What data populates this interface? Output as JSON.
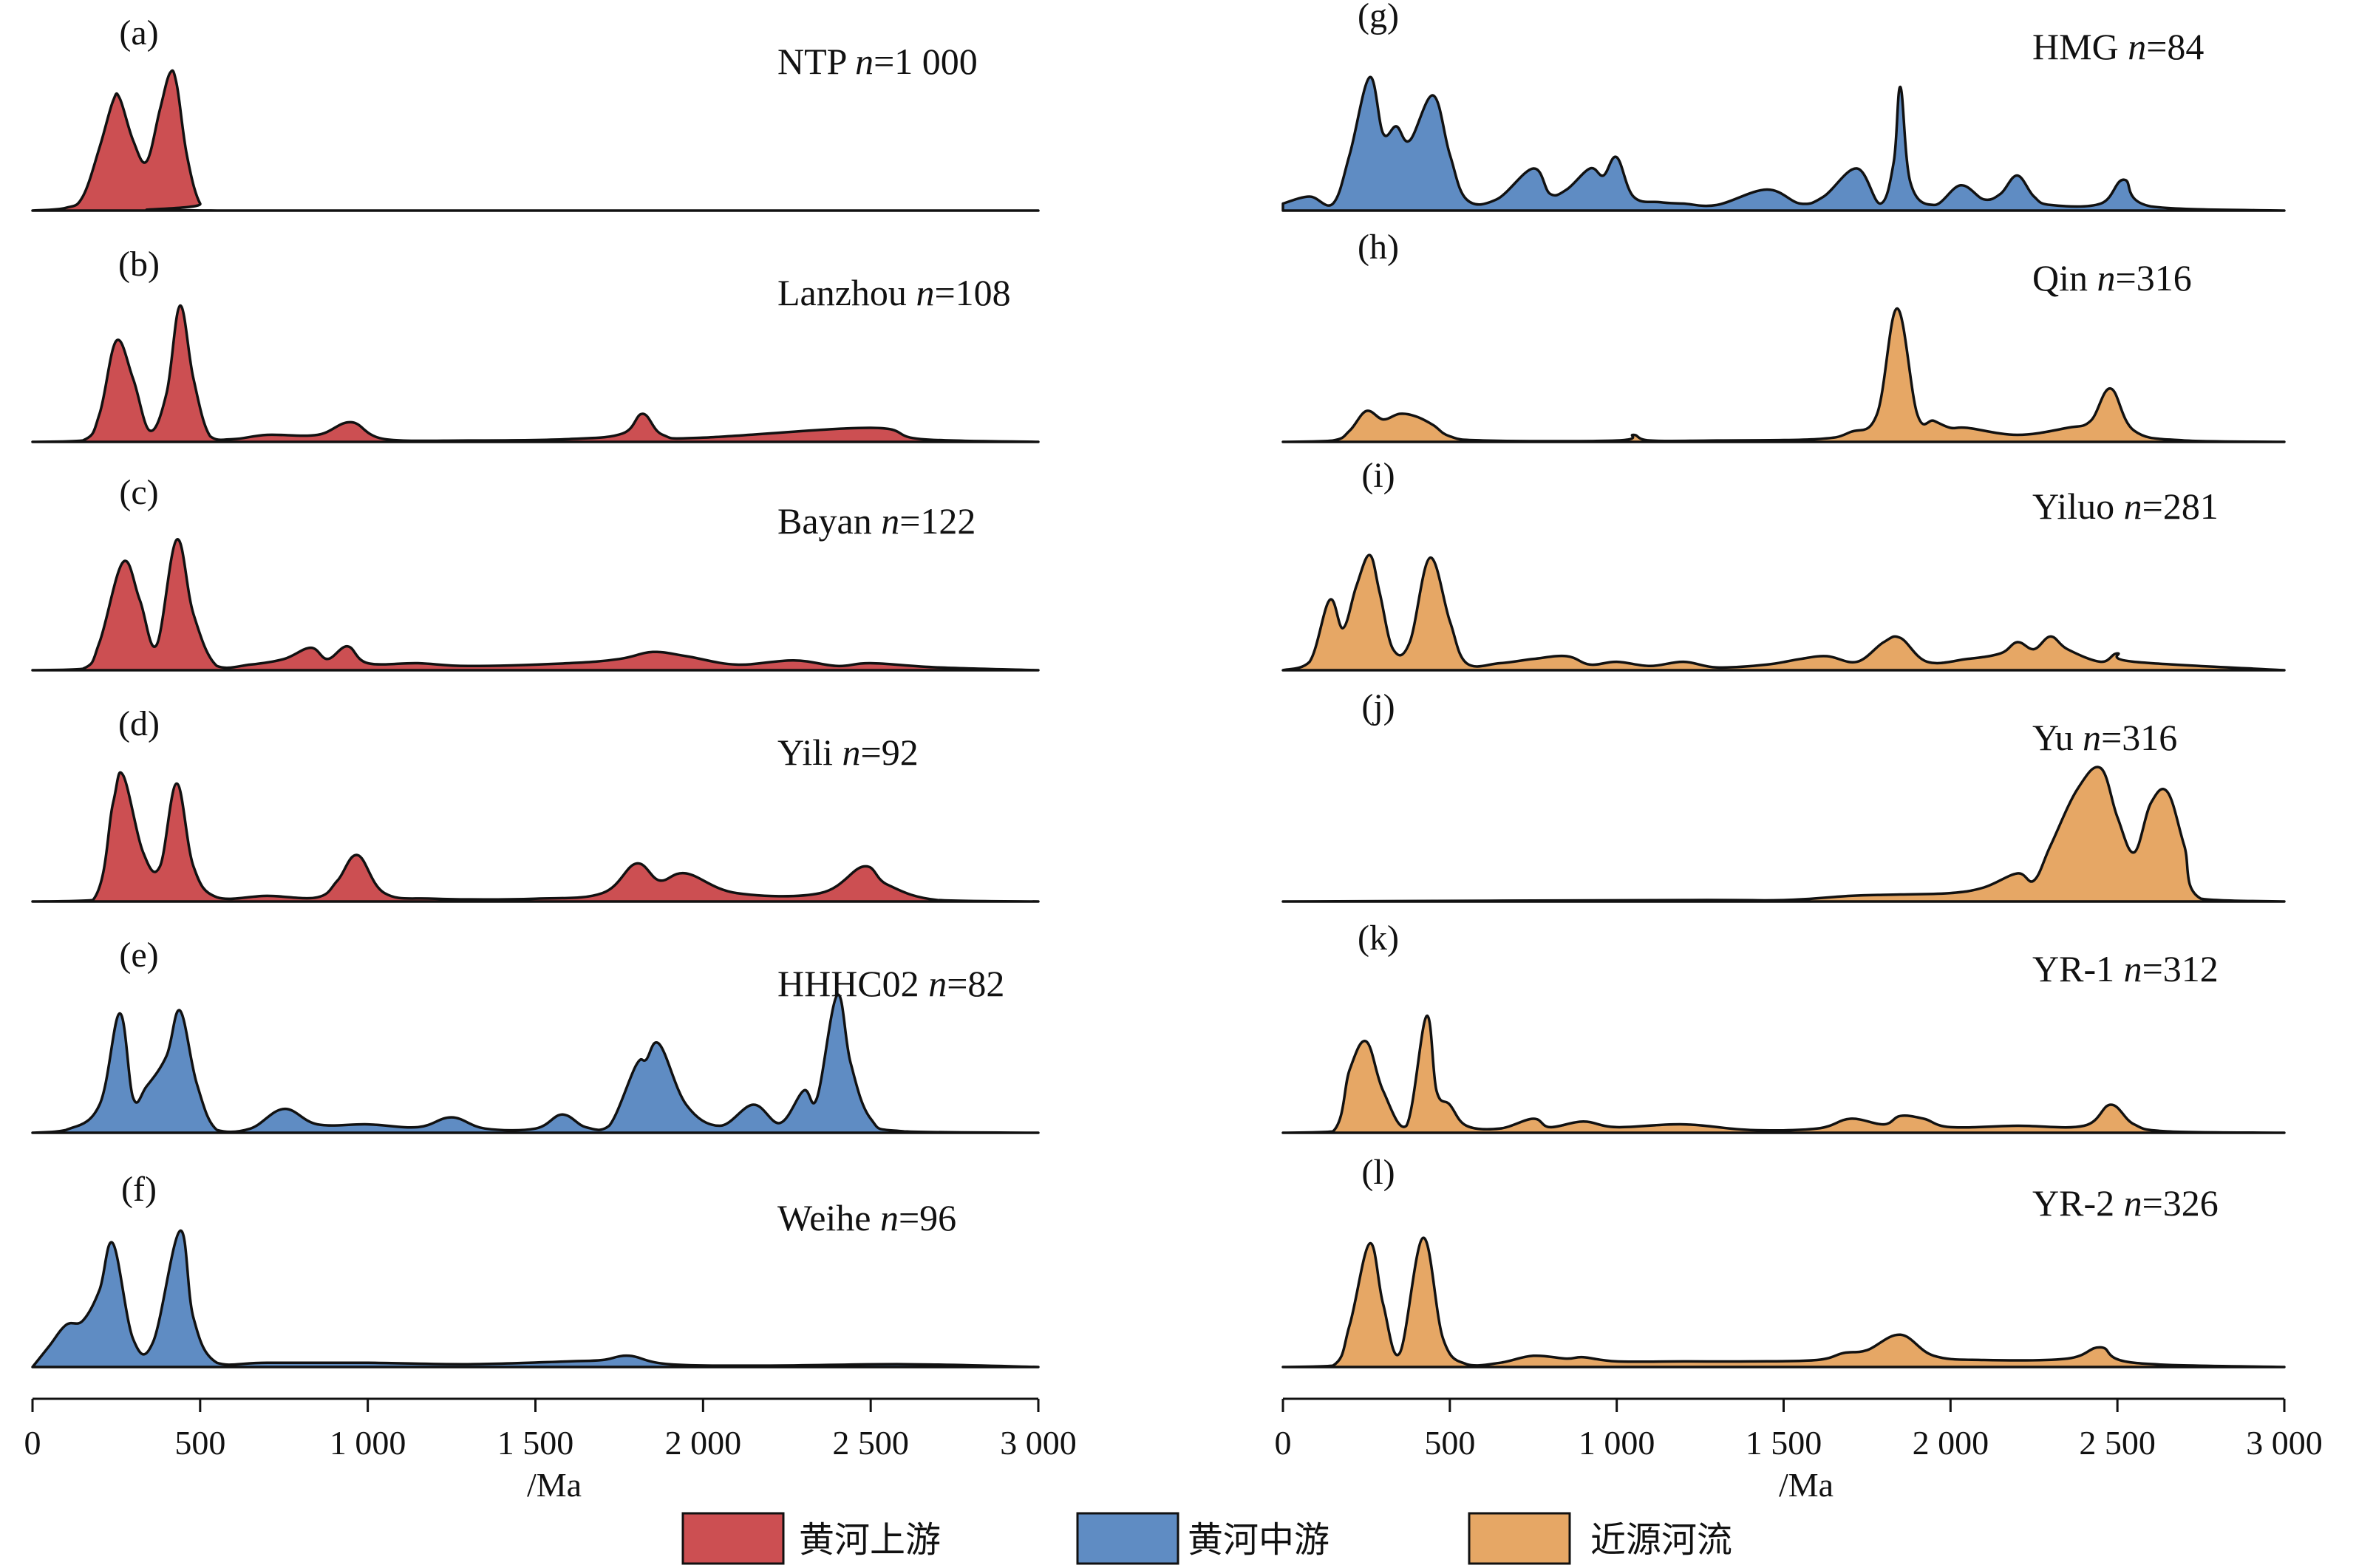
{
  "x_axis": {
    "ticks": [
      "0",
      "500",
      "1 000",
      "1 500",
      "2 000",
      "2 500",
      "3 000"
    ],
    "tick_values": [
      0,
      500,
      1000,
      1500,
      2000,
      2500,
      3000
    ],
    "label": "/Ma"
  },
  "legend": {
    "items": [
      {
        "label": "黄河上游",
        "color": "#cc4f52"
      },
      {
        "label": "黄河中游",
        "color": "#5f8cc3"
      },
      {
        "label": "近源河流",
        "color": "#e6a765"
      }
    ]
  },
  "chart_data": [
    {
      "type": "area",
      "panel": "(a)",
      "sample": "NTP",
      "n": "1 000",
      "color": "#cc4f52",
      "xlim": [
        0,
        3000
      ],
      "x": [
        0,
        100,
        150,
        200,
        240,
        260,
        300,
        340,
        380,
        410,
        430,
        460,
        500,
        550,
        3000
      ],
      "y": [
        0,
        0.02,
        0.1,
        0.45,
        0.78,
        0.8,
        0.5,
        0.35,
        0.72,
        0.98,
        0.9,
        0.4,
        0.05,
        0,
        0
      ]
    },
    {
      "type": "area",
      "panel": "(b)",
      "sample": "Lanzhou",
      "n": "108",
      "color": "#cc4f52",
      "xlim": [
        0,
        3000
      ],
      "x": [
        0,
        150,
        200,
        250,
        300,
        350,
        400,
        440,
        480,
        530,
        600,
        700,
        850,
        950,
        1050,
        1300,
        1600,
        1760,
        1820,
        1880,
        2000,
        2500,
        2650,
        3000
      ],
      "y": [
        0,
        0.01,
        0.2,
        0.72,
        0.45,
        0.08,
        0.35,
        0.97,
        0.45,
        0.04,
        0.02,
        0.05,
        0.05,
        0.14,
        0.02,
        0.01,
        0.02,
        0.06,
        0.2,
        0.05,
        0.03,
        0.1,
        0.02,
        0
      ]
    },
    {
      "type": "area",
      "panel": "(c)",
      "sample": "Bayan",
      "n": "122",
      "color": "#cc4f52",
      "xlim": [
        0,
        3000
      ],
      "x": [
        0,
        150,
        200,
        270,
        320,
        370,
        430,
        480,
        550,
        650,
        750,
        830,
        880,
        940,
        1000,
        1150,
        1300,
        1600,
        1750,
        1850,
        1950,
        2100,
        2270,
        2400,
        2500,
        2700,
        3000
      ],
      "y": [
        0,
        0.01,
        0.2,
        0.77,
        0.5,
        0.18,
        0.93,
        0.4,
        0.03,
        0.04,
        0.08,
        0.16,
        0.08,
        0.17,
        0.05,
        0.05,
        0.03,
        0.05,
        0.08,
        0.13,
        0.1,
        0.04,
        0.07,
        0.03,
        0.05,
        0.02,
        0
      ]
    },
    {
      "type": "area",
      "panel": "(d)",
      "sample": "Yili",
      "n": "92",
      "color": "#cc4f52",
      "xlim": [
        0,
        3000
      ],
      "x": [
        0,
        180,
        240,
        270,
        330,
        380,
        430,
        480,
        550,
        700,
        850,
        910,
        970,
        1050,
        1200,
        1500,
        1700,
        1800,
        1870,
        1950,
        2100,
        2350,
        2480,
        2550,
        2700,
        3000
      ],
      "y": [
        0,
        0.01,
        0.7,
        0.9,
        0.35,
        0.25,
        0.84,
        0.25,
        0.03,
        0.04,
        0.03,
        0.15,
        0.33,
        0.06,
        0.02,
        0.02,
        0.06,
        0.27,
        0.15,
        0.2,
        0.06,
        0.06,
        0.25,
        0.12,
        0.01,
        0
      ]
    },
    {
      "type": "area",
      "panel": "(e)",
      "sample": "HHHC02",
      "n": "82",
      "color": "#5f8cc3",
      "xlim": [
        0,
        3000
      ],
      "x": [
        0,
        100,
        200,
        260,
        300,
        340,
        400,
        440,
        490,
        550,
        650,
        750,
        850,
        1000,
        1150,
        1250,
        1350,
        1500,
        1580,
        1650,
        1720,
        1800,
        1830,
        1870,
        1950,
        2050,
        2150,
        2230,
        2300,
        2340,
        2400,
        2440,
        2500,
        2600,
        3000
      ],
      "y": [
        0,
        0.02,
        0.2,
        0.85,
        0.25,
        0.33,
        0.55,
        0.87,
        0.35,
        0.02,
        0.03,
        0.17,
        0.06,
        0.06,
        0.04,
        0.11,
        0.03,
        0.03,
        0.13,
        0.04,
        0.05,
        0.48,
        0.52,
        0.63,
        0.2,
        0.05,
        0.2,
        0.07,
        0.3,
        0.25,
        0.98,
        0.5,
        0.1,
        0.01,
        0
      ]
    },
    {
      "type": "area",
      "panel": "(f)",
      "sample": "Weihe",
      "n": "96",
      "color": "#5f8cc3",
      "xlim": [
        0,
        3000
      ],
      "x": [
        0,
        50,
        100,
        150,
        200,
        240,
        300,
        360,
        440,
        480,
        550,
        700,
        1000,
        1300,
        1600,
        1700,
        1780,
        1900,
        2200,
        2600,
        3000
      ],
      "y": [
        0,
        0.15,
        0.3,
        0.33,
        0.55,
        0.88,
        0.2,
        0.18,
        0.97,
        0.35,
        0.03,
        0.03,
        0.03,
        0.02,
        0.04,
        0.05,
        0.08,
        0.02,
        0.01,
        0.02,
        0
      ]
    },
    {
      "type": "area",
      "panel": "(g)",
      "sample": "HMG",
      "n": "84",
      "color": "#5f8cc3",
      "xlim": [
        0,
        3000
      ],
      "x": [
        0,
        80,
        150,
        200,
        260,
        300,
        340,
        380,
        450,
        500,
        550,
        640,
        750,
        800,
        850,
        920,
        960,
        1000,
        1050,
        1130,
        1200,
        1300,
        1450,
        1550,
        1620,
        1720,
        1790,
        1830,
        1850,
        1880,
        1950,
        2030,
        2100,
        2150,
        2200,
        2250,
        2300,
        2450,
        2520,
        2600,
        3000
      ],
      "y": [
        0.05,
        0.1,
        0.05,
        0.4,
        0.95,
        0.55,
        0.6,
        0.5,
        0.82,
        0.4,
        0.08,
        0.08,
        0.3,
        0.12,
        0.15,
        0.3,
        0.25,
        0.38,
        0.1,
        0.06,
        0.05,
        0.04,
        0.15,
        0.05,
        0.1,
        0.3,
        0.05,
        0.35,
        0.88,
        0.2,
        0.04,
        0.18,
        0.08,
        0.12,
        0.25,
        0.1,
        0.04,
        0.05,
        0.22,
        0.03,
        0
      ]
    },
    {
      "type": "area",
      "panel": "(h)",
      "sample": "Qin",
      "n": "316",
      "color": "#e6a765",
      "xlim": [
        0,
        3000
      ],
      "x": [
        0,
        150,
        200,
        250,
        300,
        350,
        400,
        450,
        500,
        600,
        1000,
        1050,
        1100,
        1300,
        1600,
        1700,
        1780,
        1840,
        1900,
        1950,
        2000,
        2050,
        2200,
        2350,
        2420,
        2480,
        2550,
        2700,
        3000
      ],
      "y": [
        0,
        0.01,
        0.08,
        0.22,
        0.16,
        0.2,
        0.18,
        0.12,
        0.04,
        0.01,
        0.01,
        0.05,
        0.01,
        0.01,
        0.02,
        0.07,
        0.2,
        0.95,
        0.2,
        0.15,
        0.1,
        0.1,
        0.05,
        0.1,
        0.15,
        0.38,
        0.08,
        0.01,
        0
      ]
    },
    {
      "type": "area",
      "panel": "(i)",
      "sample": "Yiluo",
      "n": "281",
      "color": "#e6a765",
      "xlim": [
        0,
        3000
      ],
      "x": [
        0,
        80,
        140,
        180,
        220,
        260,
        290,
        330,
        380,
        440,
        500,
        550,
        650,
        750,
        850,
        920,
        1000,
        1100,
        1200,
        1300,
        1450,
        1550,
        1630,
        1720,
        1800,
        1850,
        1930,
        2050,
        2150,
        2200,
        2250,
        2300,
        2350,
        2450,
        2500,
        2550,
        3000
      ],
      "y": [
        0,
        0.06,
        0.5,
        0.3,
        0.6,
        0.82,
        0.55,
        0.15,
        0.2,
        0.8,
        0.35,
        0.05,
        0.05,
        0.08,
        0.1,
        0.04,
        0.06,
        0.03,
        0.06,
        0.02,
        0.04,
        0.08,
        0.1,
        0.06,
        0.2,
        0.23,
        0.06,
        0.08,
        0.12,
        0.2,
        0.15,
        0.24,
        0.15,
        0.06,
        0.12,
        0.06,
        0
      ]
    },
    {
      "type": "area",
      "panel": "(j)",
      "sample": "Yu",
      "n": "316",
      "color": "#e6a765",
      "xlim": [
        0,
        3000
      ],
      "x": [
        0,
        1200,
        1500,
        1700,
        1850,
        2000,
        2100,
        2200,
        2250,
        2300,
        2380,
        2450,
        2500,
        2550,
        2600,
        2650,
        2700,
        2750,
        3000
      ],
      "y": [
        0,
        0.01,
        0.01,
        0.04,
        0.05,
        0.06,
        0.1,
        0.2,
        0.15,
        0.4,
        0.8,
        0.95,
        0.6,
        0.35,
        0.7,
        0.78,
        0.4,
        0.02,
        0
      ]
    },
    {
      "type": "area",
      "panel": "(k)",
      "sample": "YR-1",
      "n": "312",
      "color": "#e6a765",
      "xlim": [
        0,
        3000
      ],
      "x": [
        0,
        150,
        200,
        250,
        300,
        370,
        430,
        460,
        500,
        550,
        650,
        750,
        800,
        900,
        1000,
        1200,
        1400,
        1600,
        1700,
        1800,
        1850,
        1920,
        2000,
        2200,
        2400,
        2480,
        2550,
        2650,
        3000
      ],
      "y": [
        0,
        0.01,
        0.45,
        0.65,
        0.3,
        0.05,
        0.83,
        0.3,
        0.2,
        0.05,
        0.03,
        0.1,
        0.04,
        0.08,
        0.04,
        0.06,
        0.02,
        0.03,
        0.1,
        0.06,
        0.12,
        0.1,
        0.04,
        0.05,
        0.05,
        0.2,
        0.06,
        0.01,
        0
      ]
    },
    {
      "type": "area",
      "panel": "(l)",
      "sample": "YR-2",
      "n": "326",
      "color": "#e6a765",
      "xlim": [
        0,
        3000
      ],
      "x": [
        0,
        150,
        200,
        260,
        300,
        350,
        420,
        480,
        550,
        650,
        750,
        850,
        900,
        1000,
        1200,
        1400,
        1600,
        1680,
        1750,
        1850,
        1950,
        2100,
        2350,
        2450,
        2550,
        3000
      ],
      "y": [
        0,
        0.01,
        0.3,
        0.88,
        0.45,
        0.1,
        0.92,
        0.2,
        0.02,
        0.03,
        0.08,
        0.06,
        0.07,
        0.04,
        0.04,
        0.04,
        0.05,
        0.1,
        0.12,
        0.23,
        0.08,
        0.05,
        0.06,
        0.14,
        0.03,
        0
      ]
    }
  ]
}
